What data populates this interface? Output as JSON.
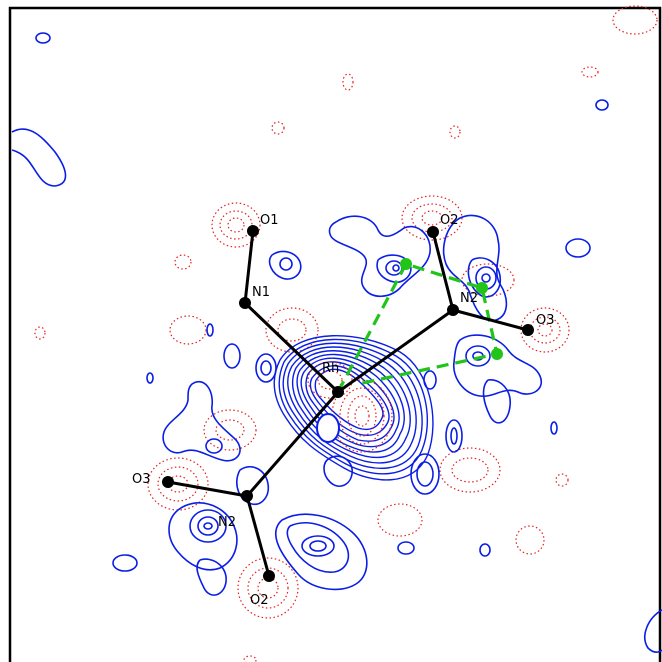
{
  "atoms": {
    "o1": "O1",
    "n1": "N1",
    "rh": "Rh",
    "o2_top": "O2",
    "n2_top": "N2",
    "o3_right": "O3",
    "o3_left": "O3",
    "n2_bottom": "N2",
    "o2_bottom": "O2"
  },
  "colors": {
    "positive_contour": "#0a1ee6",
    "negative_contour": "#e61e1e",
    "bond": "#000000",
    "highlight": "#22c41a"
  }
}
